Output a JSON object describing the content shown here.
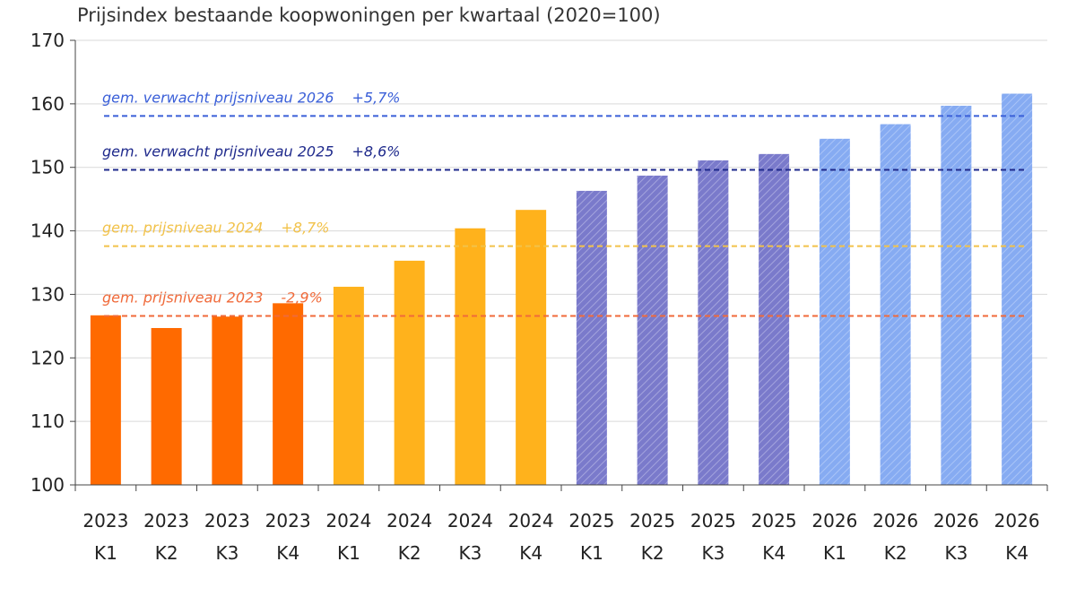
{
  "chart_data": {
    "type": "bar",
    "title": "Prijsindex bestaande koopwoningen per kwartaal (2020=100)",
    "xlabel": "",
    "ylabel": "",
    "ylim": [
      100,
      170
    ],
    "yticks": [
      100,
      110,
      120,
      130,
      140,
      150,
      160,
      170
    ],
    "grid": true,
    "categories": [
      [
        "2023",
        "K1"
      ],
      [
        "2023",
        "K2"
      ],
      [
        "2023",
        "K3"
      ],
      [
        "2023",
        "K4"
      ],
      [
        "2024",
        "K1"
      ],
      [
        "2024",
        "K2"
      ],
      [
        "2024",
        "K3"
      ],
      [
        "2024",
        "K4"
      ],
      [
        "2025",
        "K1"
      ],
      [
        "2025",
        "K2"
      ],
      [
        "2025",
        "K3"
      ],
      [
        "2025",
        "K4"
      ],
      [
        "2026",
        "K1"
      ],
      [
        "2026",
        "K2"
      ],
      [
        "2026",
        "K3"
      ],
      [
        "2026",
        "K4"
      ]
    ],
    "values": [
      126.7,
      124.7,
      126.5,
      128.6,
      131.2,
      135.3,
      140.4,
      143.3,
      146.3,
      148.7,
      151.1,
      152.1,
      154.5,
      156.8,
      159.7,
      161.6
    ],
    "bar_groups": [
      {
        "year": "2023",
        "color": "#ff6a00",
        "style": "solid"
      },
      {
        "year": "2024",
        "color": "#ffb21c",
        "style": "solid"
      },
      {
        "year": "2025",
        "color": "#7f7fcf",
        "style": "hatched"
      },
      {
        "year": "2026",
        "color": "#8db0f3",
        "style": "hatched-light"
      }
    ],
    "reference_lines": [
      {
        "value": 158.1,
        "label": "gem. verwacht prijsniveau 2026",
        "change": "+5,7%",
        "color": "#3a5fd8"
      },
      {
        "value": 149.6,
        "label": "gem. verwacht prijsniveau 2025",
        "change": "+8,6%",
        "color": "#1f2a8c"
      },
      {
        "value": 137.6,
        "label": "gem. prijsniveau 2024",
        "change": "+8,7%",
        "color": "#f2c24a"
      },
      {
        "value": 126.6,
        "label": "gem. prijsniveau 2023",
        "change": "-2,9%",
        "color": "#f06a3a"
      }
    ]
  }
}
